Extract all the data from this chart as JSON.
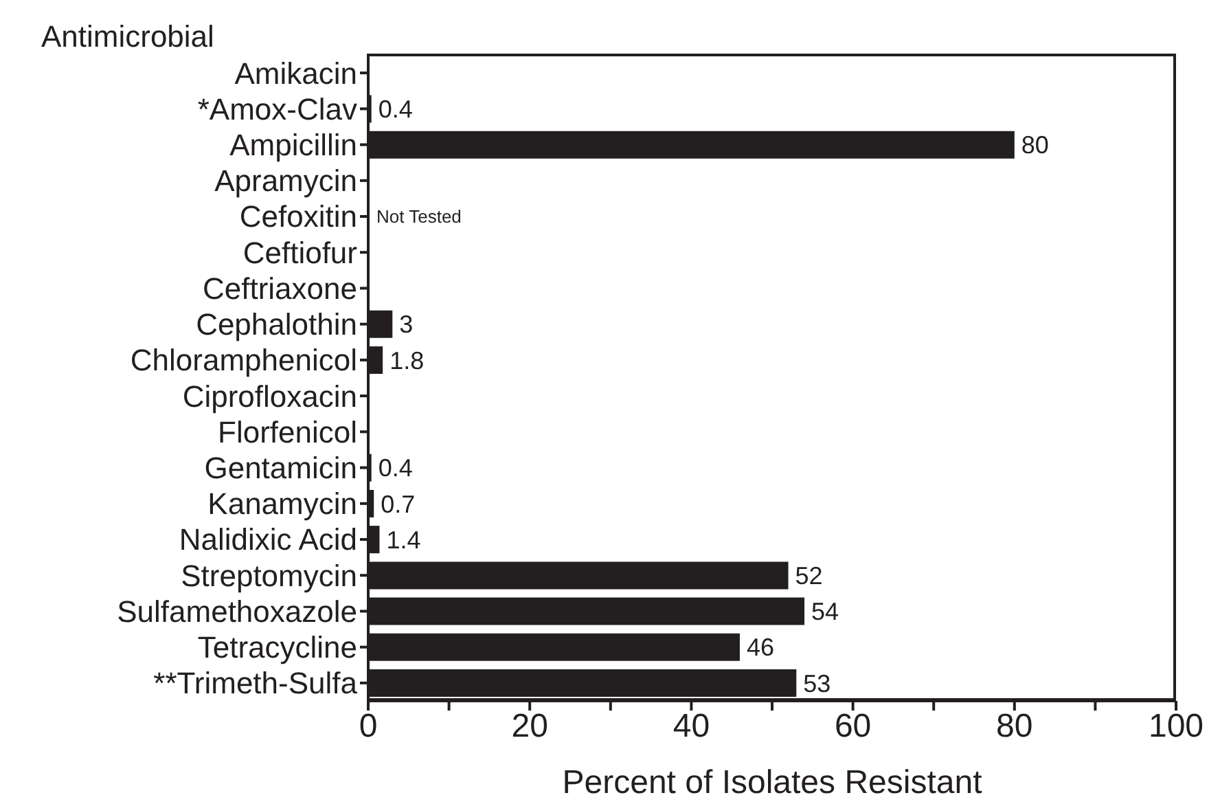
{
  "chart_data": {
    "type": "bar",
    "orientation": "horizontal",
    "ylabel": "Antimicrobial",
    "xlabel": "Percent of Isolates Resistant",
    "categories": [
      "Amikacin",
      "*Amox-Clav",
      "Ampicillin",
      "Apramycin",
      "Cefoxitin",
      "Ceftiofur",
      "Ceftriaxone",
      "Cephalothin",
      "Chloramphenicol",
      "Ciprofloxacin",
      "Florfenicol",
      "Gentamicin",
      "Kanamycin",
      "Nalidixic Acid",
      "Streptomycin",
      "Sulfamethoxazole",
      "Tetracycline",
      "**Trimeth-Sulfa"
    ],
    "values": [
      0,
      0.4,
      80,
      0,
      null,
      0,
      0,
      3,
      1.8,
      0,
      0,
      0.4,
      0.7,
      1.4,
      52,
      54,
      46,
      53
    ],
    "value_labels": [
      null,
      "0.4",
      "80",
      null,
      "Not Tested",
      null,
      null,
      "3",
      "1.8",
      null,
      null,
      "0.4",
      "0.7",
      "1.4",
      "52",
      "54",
      "46",
      "53"
    ],
    "color": "#231f20",
    "xlim": [
      0,
      100
    ],
    "xticks": [
      0,
      {
        "value": 10,
        "label": null
      },
      20,
      {
        "value": 30,
        "label": null
      },
      40,
      {
        "value": 50,
        "label": null
      },
      60,
      {
        "value": 70,
        "label": null
      },
      80,
      {
        "value": 90,
        "label": null
      },
      100
    ],
    "grid": false,
    "legend": false
  }
}
